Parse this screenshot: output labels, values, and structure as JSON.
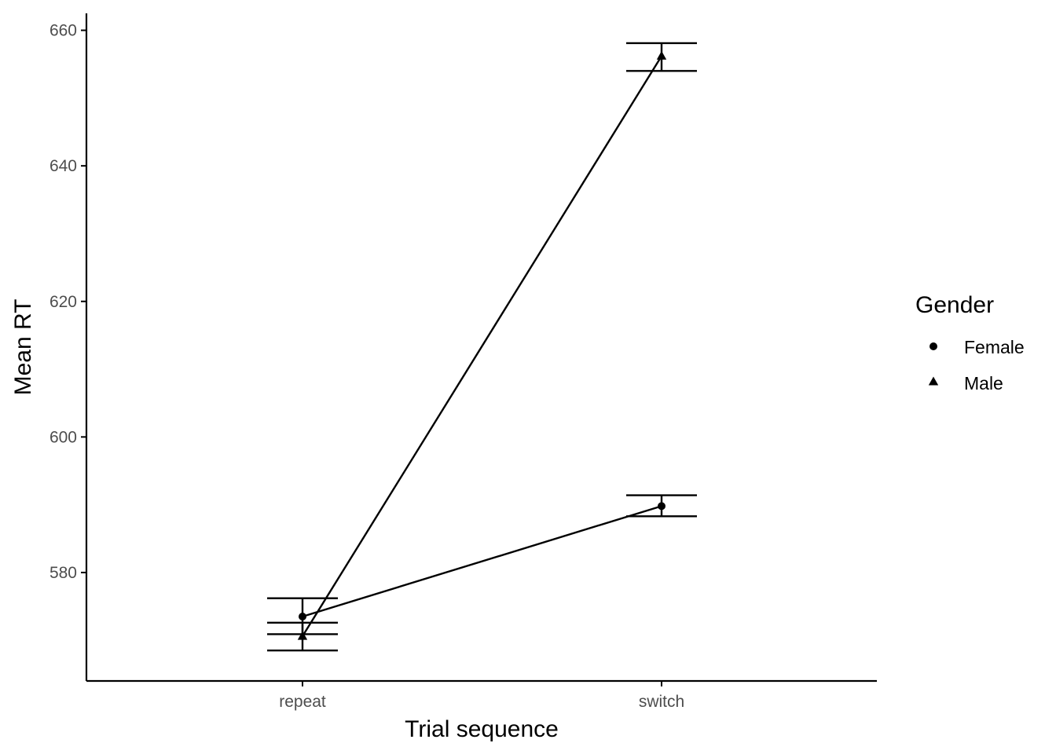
{
  "chart_data": {
    "type": "line",
    "xlabel": "Trial sequence",
    "ylabel": "Mean RT",
    "categories": [
      "repeat",
      "switch"
    ],
    "y_ticks": [
      580,
      600,
      620,
      640,
      660
    ],
    "ylim": [
      564,
      662.5
    ],
    "grid": false,
    "legend": {
      "title": "Gender",
      "position": "right"
    },
    "series": [
      {
        "name": "Female",
        "shape": "circle",
        "values": [
          573.5,
          589.8
        ],
        "error_low": [
          570.9,
          588.3
        ],
        "error_high": [
          576.2,
          591.4
        ]
      },
      {
        "name": "Male",
        "shape": "triangle",
        "values": [
          570.6,
          656.2
        ],
        "error_low": [
          568.5,
          654.0
        ],
        "error_high": [
          572.6,
          658.1
        ]
      }
    ],
    "colors": {
      "ink": "#000000",
      "tick_text": "#4d4d4d"
    }
  }
}
